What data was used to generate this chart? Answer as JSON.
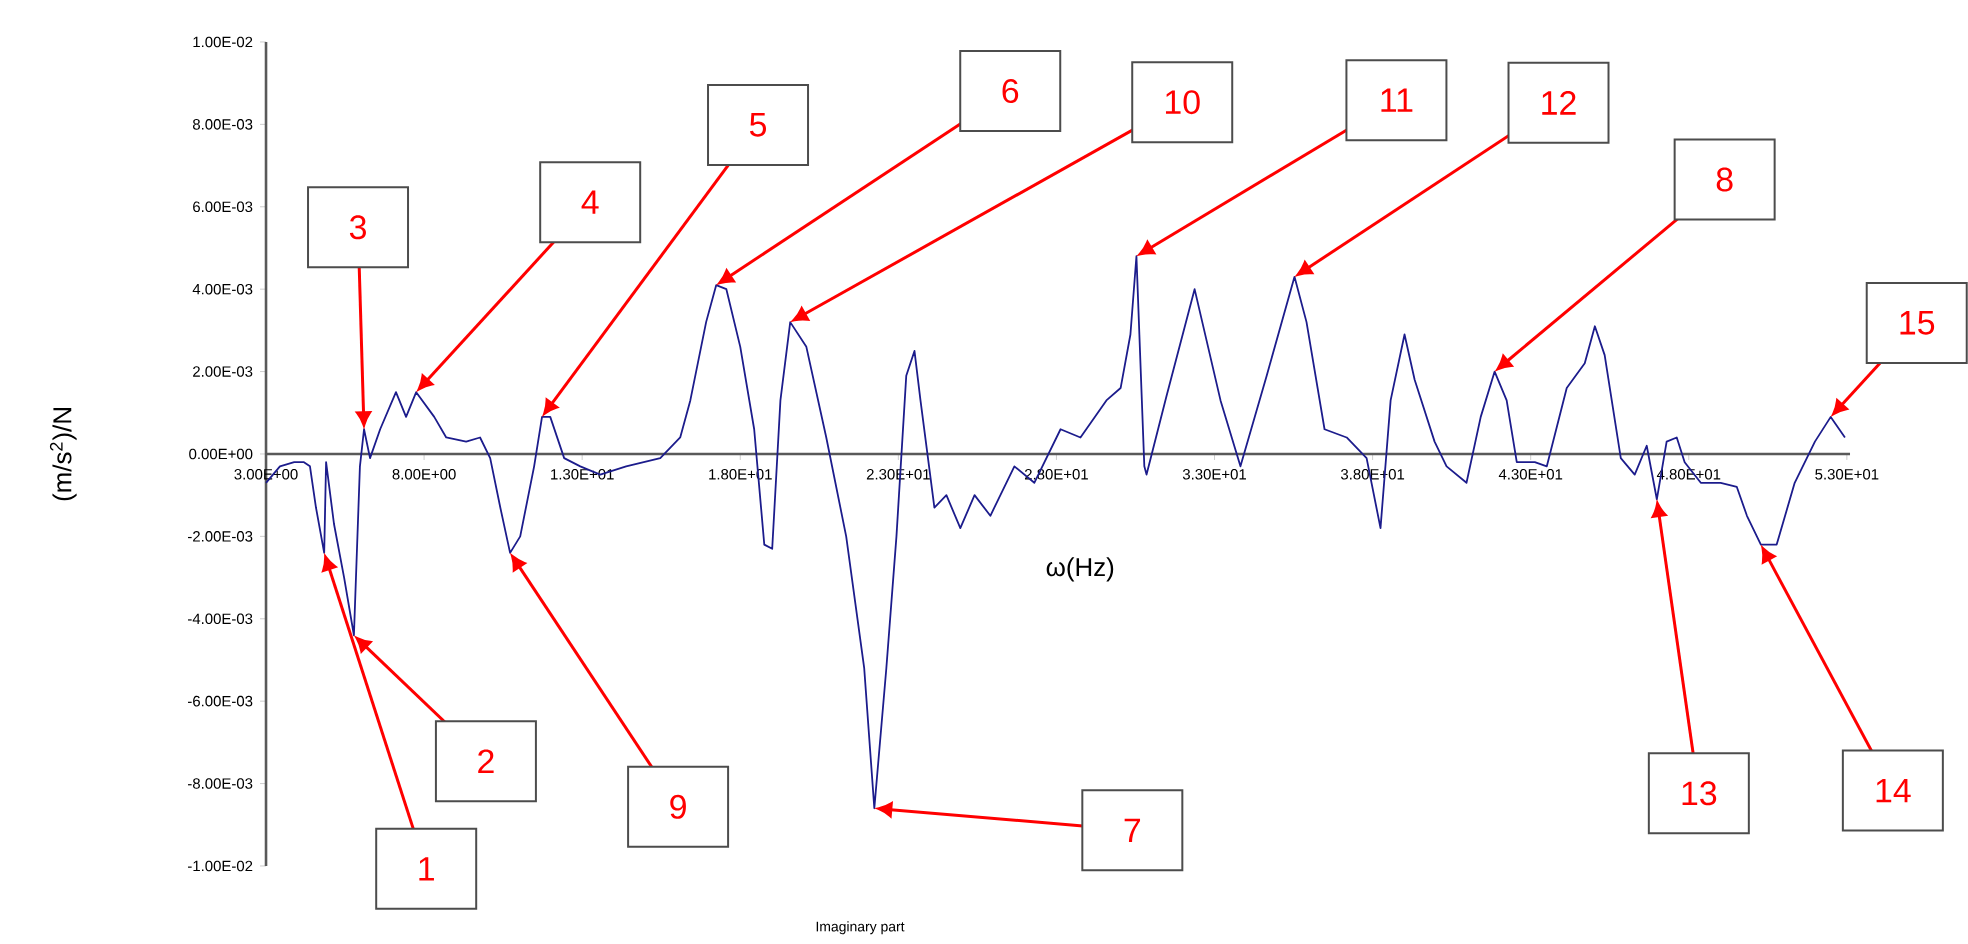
{
  "chart_data": {
    "type": "line",
    "xlabel": "ω(Hz)",
    "ylabel": "(m/s$^{2}$)/N",
    "xlim": [
      3,
      53.1
    ],
    "ylim": [
      -0.01,
      0.01
    ],
    "xticks": [
      {
        "value": 3,
        "label": "3.00E+00"
      },
      {
        "value": 8,
        "label": "8.00E+00"
      },
      {
        "value": 13,
        "label": "1.30E+01"
      },
      {
        "value": 18,
        "label": "1.80E+01"
      },
      {
        "value": 23,
        "label": "2.30E+01"
      },
      {
        "value": 28,
        "label": "2.80E+01"
      },
      {
        "value": 33,
        "label": "3.30E+01"
      },
      {
        "value": 38,
        "label": "3.80E+01"
      },
      {
        "value": 43,
        "label": "4.30E+01"
      },
      {
        "value": 48,
        "label": "4.80E+01"
      },
      {
        "value": 53,
        "label": "5.30E+01"
      }
    ],
    "yticks": [
      {
        "value": 0.01,
        "label": "1.00E-02"
      },
      {
        "value": 0.008,
        "label": "8.00E-03"
      },
      {
        "value": 0.006,
        "label": "6.00E-03"
      },
      {
        "value": 0.004,
        "label": "4.00E-03"
      },
      {
        "value": 0.002,
        "label": "2.00E-03"
      },
      {
        "value": 0,
        "label": "0.00E+00"
      },
      {
        "value": -0.002,
        "label": "-2.00E-03"
      },
      {
        "value": -0.004,
        "label": "-4.00E-03"
      },
      {
        "value": -0.006,
        "label": "-6.00E-03"
      },
      {
        "value": -0.008,
        "label": "-8.00E-03"
      },
      {
        "value": -0.01,
        "label": "-1.00E-02"
      }
    ],
    "x": [
      3.0,
      3.44,
      3.89,
      4.2,
      4.39,
      4.58,
      4.84,
      4.9,
      5.15,
      5.47,
      5.78,
      5.97,
      6.1,
      6.29,
      6.61,
      7.11,
      7.43,
      7.75,
      8.32,
      8.7,
      9.33,
      9.77,
      10.09,
      10.41,
      10.72,
      11.04,
      11.48,
      11.73,
      11.99,
      12.43,
      12.94,
      13.57,
      14.39,
      15.47,
      16.1,
      16.42,
      16.92,
      17.24,
      17.56,
      18.0,
      18.44,
      18.76,
      19.01,
      19.27,
      19.58,
      20.09,
      20.72,
      21.35,
      21.92,
      22.24,
      22.62,
      22.94,
      23.25,
      23.51,
      23.7,
      24.14,
      24.52,
      24.96,
      25.41,
      25.91,
      26.67,
      27.3,
      28.13,
      28.76,
      29.58,
      30.03,
      30.34,
      30.53,
      30.78,
      30.85,
      31.48,
      32.37,
      33.19,
      33.82,
      34.65,
      35.53,
      35.91,
      36.48,
      37.18,
      37.81,
      38.25,
      38.57,
      39.01,
      39.33,
      39.96,
      40.34,
      40.97,
      41.42,
      41.86,
      42.24,
      42.56,
      43.13,
      43.51,
      44.14,
      44.71,
      45.03,
      45.34,
      45.85,
      46.29,
      46.67,
      46.99,
      47.3,
      47.62,
      47.87,
      48.38,
      49.01,
      49.52,
      49.84,
      50.28,
      50.78,
      51.35,
      51.99,
      52.49,
      52.94
    ],
    "series": [
      {
        "color": "#1c1c8c",
        "values": [
          -0.0007,
          -0.0003,
          -0.0002,
          -0.0002,
          -0.0003,
          -0.0013,
          -0.0024,
          -0.0002,
          -0.0017,
          -0.003,
          -0.0044,
          -0.0003,
          0.0006,
          -0.0001,
          0.0006,
          0.0015,
          0.0009,
          0.0015,
          0.0009,
          0.0004,
          0.0003,
          0.0004,
          -0.0001,
          -0.0013,
          -0.0024,
          -0.002,
          -0.0003,
          0.0009,
          0.0009,
          -0.0001,
          -0.0003,
          -0.0005,
          -0.0003,
          -0.0001,
          0.0004,
          0.0013,
          0.0032,
          0.0041,
          0.004,
          0.0026,
          0.0006,
          -0.0022,
          -0.0023,
          0.0013,
          0.0032,
          0.0026,
          0.0004,
          -0.002,
          -0.0052,
          -0.0086,
          -0.0052,
          -0.002,
          0.0019,
          0.0025,
          0.0013,
          -0.0013,
          -0.001,
          -0.0018,
          -0.001,
          -0.0015,
          -0.0003,
          -0.0007,
          0.0006,
          0.0004,
          0.0013,
          0.0016,
          0.0029,
          0.0048,
          -0.0003,
          -0.0005,
          0.0014,
          0.004,
          0.0013,
          -0.0003,
          0.0019,
          0.0043,
          0.0032,
          0.0006,
          0.0004,
          -0.0001,
          -0.0018,
          0.0013,
          0.0029,
          0.0018,
          0.0003,
          -0.0003,
          -0.0007,
          0.0009,
          0.002,
          0.0013,
          -0.0002,
          -0.0002,
          -0.0003,
          0.0016,
          0.0022,
          0.0031,
          0.0024,
          -0.0001,
          -0.0005,
          0.0002,
          -0.0011,
          0.0003,
          0.0004,
          -0.0002,
          -0.0007,
          -0.0007,
          -0.0008,
          -0.0015,
          -0.0022,
          -0.0022,
          -0.0007,
          0.0003,
          0.0009,
          0.0004
        ]
      }
    ],
    "annotations": [
      {
        "text": "1",
        "x": 4.84,
        "y": -0.0024
      },
      {
        "text": "2",
        "x": 5.78,
        "y": -0.0044
      },
      {
        "text": "3",
        "x": 6.1,
        "y": 0.0006
      },
      {
        "text": "4",
        "x": 7.75,
        "y": 0.0015
      },
      {
        "text": "5",
        "x": 11.73,
        "y": 0.0009
      },
      {
        "text": "6",
        "x": 17.24,
        "y": 0.0041
      },
      {
        "text": "7",
        "x": 22.24,
        "y": -0.0086
      },
      {
        "text": "8",
        "x": 41.86,
        "y": 0.002
      },
      {
        "text": "9",
        "x": 10.72,
        "y": -0.0024
      },
      {
        "text": "10",
        "x": 19.58,
        "y": 0.0032
      },
      {
        "text": "11",
        "x": 30.53,
        "y": 0.0048
      },
      {
        "text": "12",
        "x": 35.53,
        "y": 0.0043
      },
      {
        "text": "13",
        "x": 46.99,
        "y": -0.0011
      },
      {
        "text": "14",
        "x": 50.28,
        "y": -0.0022
      },
      {
        "text": "15",
        "x": 52.49,
        "y": 0.0009
      },
      "Imaginary part"
    ]
  }
}
